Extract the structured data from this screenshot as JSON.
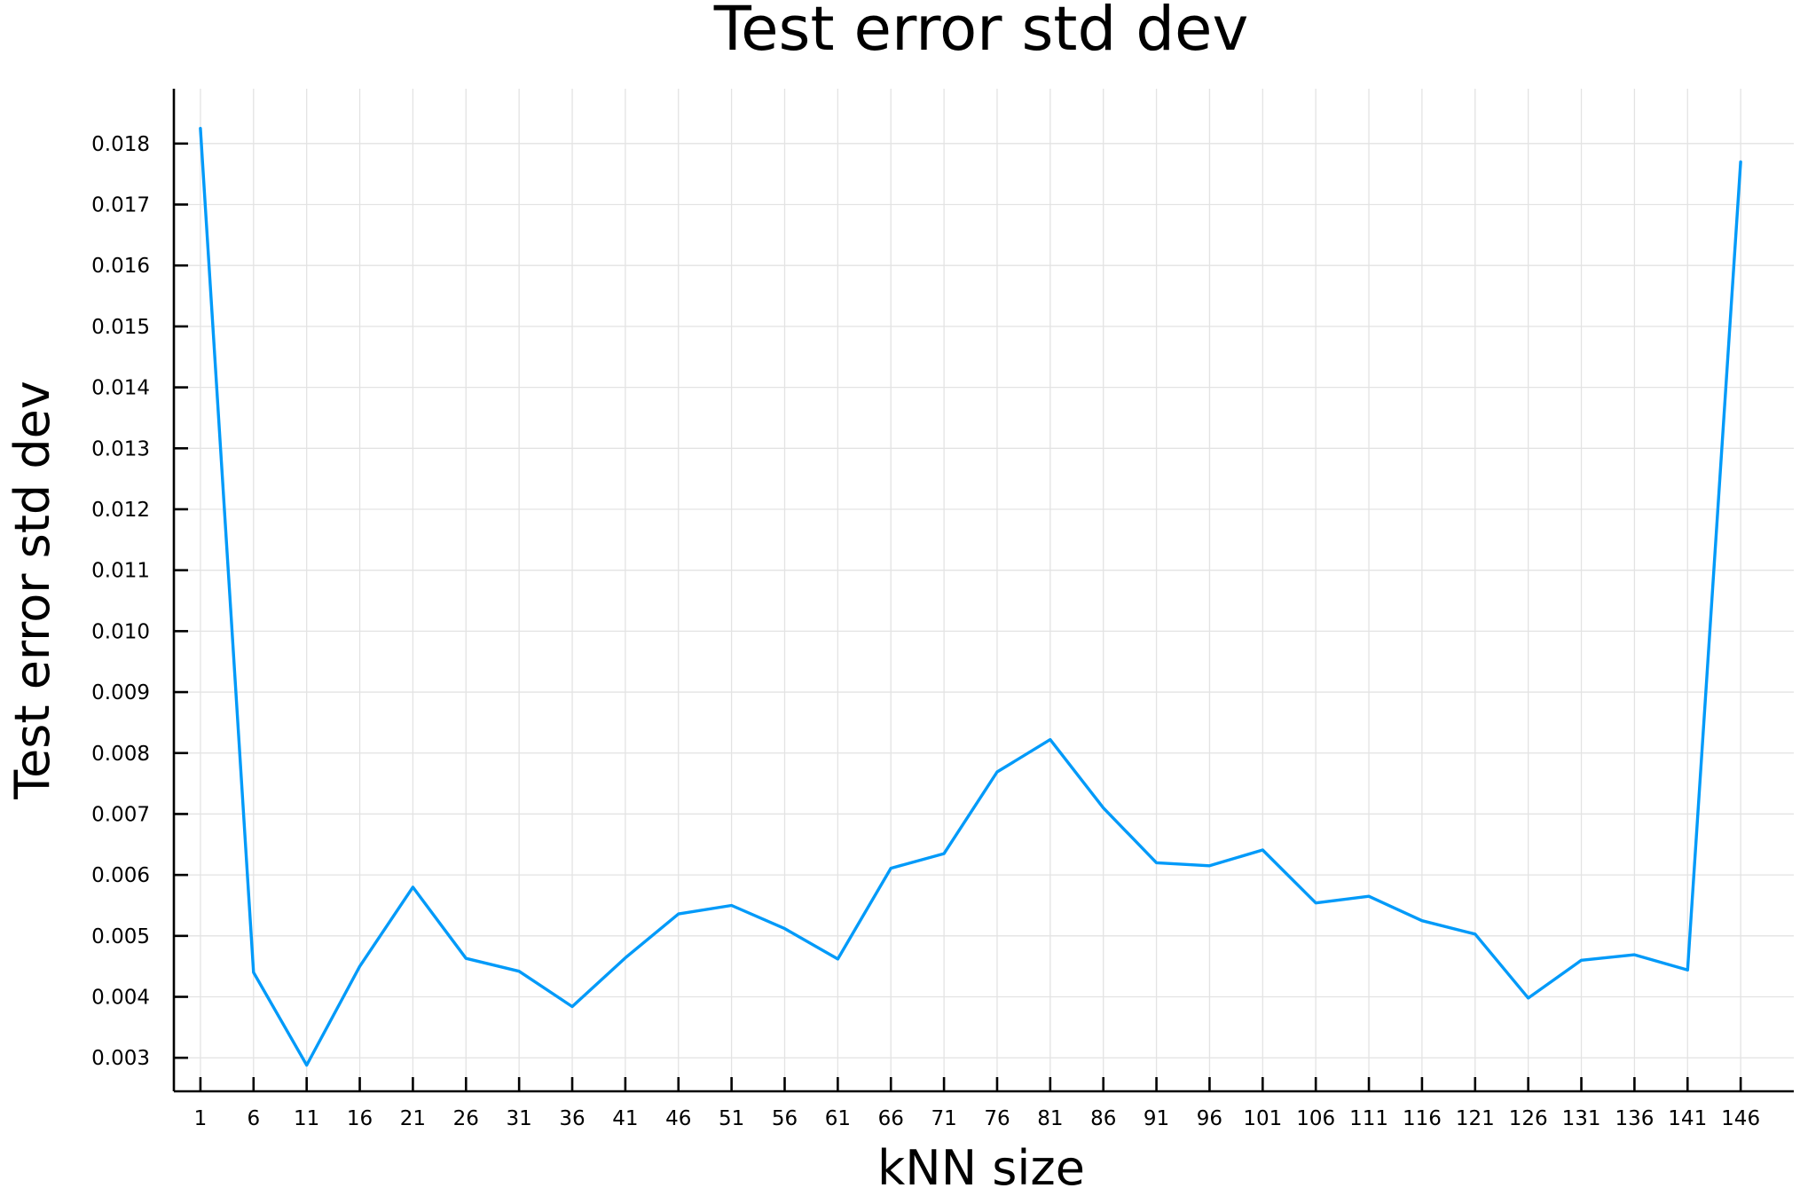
{
  "chart_data": {
    "type": "line",
    "title": "Test error std dev",
    "xlabel": "kNN size",
    "ylabel": "Test error std dev",
    "xlim": [
      -1.5,
      151
    ],
    "ylim": [
      0.00245,
      0.0189
    ],
    "x_ticks": [
      "1",
      "6",
      "11",
      "16",
      "21",
      "26",
      "31",
      "36",
      "41",
      "46",
      "51",
      "56",
      "61",
      "66",
      "71",
      "76",
      "81",
      "86",
      "91",
      "96",
      "101",
      "106",
      "111",
      "116",
      "121",
      "126",
      "131",
      "136",
      "141",
      "146"
    ],
    "y_ticks": [
      "0.003",
      "0.004",
      "0.005",
      "0.006",
      "0.007",
      "0.008",
      "0.009",
      "0.010",
      "0.011",
      "0.012",
      "0.013",
      "0.014",
      "0.015",
      "0.016",
      "0.017",
      "0.018"
    ],
    "grid": true,
    "legend": "none",
    "colors": {
      "series": "#009af9",
      "grid": "#e3e3e3",
      "axis": "#000000"
    },
    "series": [
      {
        "x": [
          1,
          6,
          11,
          16,
          21,
          26,
          31,
          36,
          41,
          46,
          51,
          56,
          61,
          66,
          71,
          76,
          81,
          86,
          91,
          96,
          101,
          106,
          111,
          116,
          121,
          126,
          131,
          136,
          141,
          146
        ],
        "values": [
          0.01825,
          0.0044,
          0.00288,
          0.0045,
          0.0058,
          0.00463,
          0.00442,
          0.00384,
          0.00464,
          0.00536,
          0.0055,
          0.00512,
          0.00462,
          0.00611,
          0.00635,
          0.00769,
          0.00822,
          0.0071,
          0.0062,
          0.00615,
          0.00641,
          0.00554,
          0.00565,
          0.00525,
          0.00503,
          0.00398,
          0.0046,
          0.00469,
          0.00444,
          0.0177
        ]
      }
    ]
  }
}
